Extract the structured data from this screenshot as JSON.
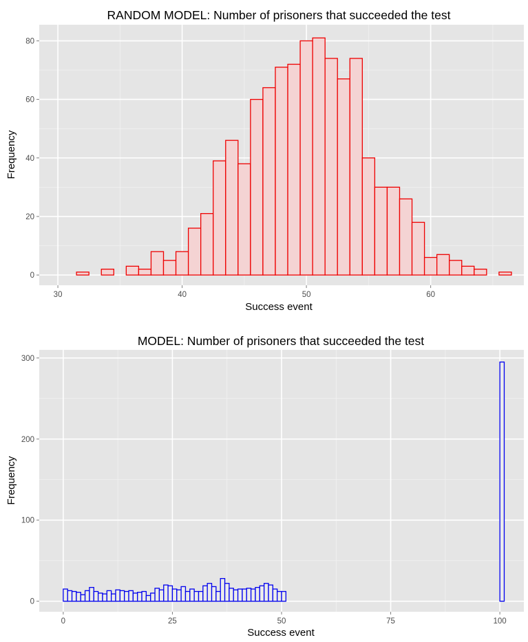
{
  "chart_data": [
    {
      "type": "bar",
      "title": "RANDOM MODEL: Number of prisoners that succeeded the test",
      "xlabel": "Success event",
      "ylabel": "Frequency",
      "xlim": [
        28.5,
        67.5
      ],
      "ylim": [
        -3.5,
        85.5
      ],
      "x_ticks": [
        30,
        40,
        50,
        60
      ],
      "y_ticks": [
        0,
        20,
        40,
        60,
        80
      ],
      "bin_width": 1,
      "grid": true,
      "legend": "none",
      "bar_fill": "#f4d3d3",
      "bar_stroke": "#ee0000",
      "bins": [
        {
          "x": 30,
          "y": 0
        },
        {
          "x": 31,
          "y": 0
        },
        {
          "x": 32,
          "y": 1
        },
        {
          "x": 33,
          "y": 0
        },
        {
          "x": 34,
          "y": 2
        },
        {
          "x": 35,
          "y": 0
        },
        {
          "x": 36,
          "y": 3
        },
        {
          "x": 37,
          "y": 2
        },
        {
          "x": 38,
          "y": 8
        },
        {
          "x": 39,
          "y": 5
        },
        {
          "x": 40,
          "y": 8
        },
        {
          "x": 41,
          "y": 16
        },
        {
          "x": 42,
          "y": 21
        },
        {
          "x": 43,
          "y": 39
        },
        {
          "x": 44,
          "y": 46
        },
        {
          "x": 45,
          "y": 38
        },
        {
          "x": 46,
          "y": 60
        },
        {
          "x": 47,
          "y": 64
        },
        {
          "x": 48,
          "y": 71
        },
        {
          "x": 49,
          "y": 72
        },
        {
          "x": 50,
          "y": 80
        },
        {
          "x": 51,
          "y": 81
        },
        {
          "x": 52,
          "y": 74
        },
        {
          "x": 53,
          "y": 67
        },
        {
          "x": 54,
          "y": 74
        },
        {
          "x": 55,
          "y": 40
        },
        {
          "x": 56,
          "y": 30
        },
        {
          "x": 57,
          "y": 30
        },
        {
          "x": 58,
          "y": 26
        },
        {
          "x": 59,
          "y": 18
        },
        {
          "x": 60,
          "y": 6
        },
        {
          "x": 61,
          "y": 7
        },
        {
          "x": 62,
          "y": 5
        },
        {
          "x": 63,
          "y": 3
        },
        {
          "x": 64,
          "y": 2
        },
        {
          "x": 65,
          "y": 0
        },
        {
          "x": 66,
          "y": 1
        }
      ]
    },
    {
      "type": "bar",
      "title": "MODEL: Number of prisoners that succeeded the test",
      "xlabel": "Success event",
      "ylabel": "Frequency",
      "xlim": [
        -5.5,
        105.5
      ],
      "ylim": [
        -13,
        310
      ],
      "x_ticks": [
        0,
        25,
        50,
        75,
        100
      ],
      "y_ticks": [
        0,
        100,
        200,
        300
      ],
      "bin_width": 1,
      "grid": true,
      "legend": "none",
      "bar_fill": "#ebebeb",
      "bar_stroke": "#0000ee",
      "bins": [
        {
          "x": -0.5,
          "y": 0
        },
        {
          "x": 0.5,
          "y": 15
        },
        {
          "x": 1.5,
          "y": 13
        },
        {
          "x": 2.5,
          "y": 12
        },
        {
          "x": 3.5,
          "y": 11
        },
        {
          "x": 4.5,
          "y": 8
        },
        {
          "x": 5.5,
          "y": 13
        },
        {
          "x": 6.5,
          "y": 17
        },
        {
          "x": 7.5,
          "y": 12
        },
        {
          "x": 8.5,
          "y": 10
        },
        {
          "x": 9.5,
          "y": 9
        },
        {
          "x": 10.5,
          "y": 13
        },
        {
          "x": 11.5,
          "y": 9
        },
        {
          "x": 12.5,
          "y": 14
        },
        {
          "x": 13.5,
          "y": 13
        },
        {
          "x": 14.5,
          "y": 12
        },
        {
          "x": 15.5,
          "y": 13
        },
        {
          "x": 16.5,
          "y": 10
        },
        {
          "x": 17.5,
          "y": 11
        },
        {
          "x": 18.5,
          "y": 12
        },
        {
          "x": 19.5,
          "y": 7
        },
        {
          "x": 20.5,
          "y": 10
        },
        {
          "x": 21.5,
          "y": 16
        },
        {
          "x": 22.5,
          "y": 14
        },
        {
          "x": 23.5,
          "y": 20
        },
        {
          "x": 24.5,
          "y": 19
        },
        {
          "x": 25.5,
          "y": 15
        },
        {
          "x": 26.5,
          "y": 14
        },
        {
          "x": 27.5,
          "y": 18
        },
        {
          "x": 28.5,
          "y": 12
        },
        {
          "x": 29.5,
          "y": 15
        },
        {
          "x": 30.5,
          "y": 12
        },
        {
          "x": 31.5,
          "y": 12
        },
        {
          "x": 32.5,
          "y": 19
        },
        {
          "x": 33.5,
          "y": 22
        },
        {
          "x": 34.5,
          "y": 18
        },
        {
          "x": 35.5,
          "y": 12
        },
        {
          "x": 36.5,
          "y": 28
        },
        {
          "x": 37.5,
          "y": 22
        },
        {
          "x": 38.5,
          "y": 16
        },
        {
          "x": 39.5,
          "y": 14
        },
        {
          "x": 40.5,
          "y": 15
        },
        {
          "x": 41.5,
          "y": 15
        },
        {
          "x": 42.5,
          "y": 16
        },
        {
          "x": 43.5,
          "y": 15
        },
        {
          "x": 44.5,
          "y": 17
        },
        {
          "x": 45.5,
          "y": 19
        },
        {
          "x": 46.5,
          "y": 22
        },
        {
          "x": 47.5,
          "y": 20
        },
        {
          "x": 48.5,
          "y": 15
        },
        {
          "x": 49.5,
          "y": 12
        },
        {
          "x": 50.5,
          "y": 12
        },
        {
          "x": 51.5,
          "y": 0
        },
        {
          "x": 52.5,
          "y": 0
        },
        {
          "x": 53.5,
          "y": 0
        },
        {
          "x": 54.5,
          "y": 0
        },
        {
          "x": 55.5,
          "y": 0
        },
        {
          "x": 56.5,
          "y": 0
        },
        {
          "x": 57.5,
          "y": 0
        },
        {
          "x": 58.5,
          "y": 0
        },
        {
          "x": 59.5,
          "y": 0
        },
        {
          "x": 60.5,
          "y": 0
        },
        {
          "x": 61.5,
          "y": 0
        },
        {
          "x": 62.5,
          "y": 0
        },
        {
          "x": 63.5,
          "y": 0
        },
        {
          "x": 64.5,
          "y": 0
        },
        {
          "x": 65.5,
          "y": 0
        },
        {
          "x": 66.5,
          "y": 0
        },
        {
          "x": 67.5,
          "y": 0
        },
        {
          "x": 68.5,
          "y": 0
        },
        {
          "x": 69.5,
          "y": 0
        },
        {
          "x": 70.5,
          "y": 0
        },
        {
          "x": 71.5,
          "y": 0
        },
        {
          "x": 72.5,
          "y": 0
        },
        {
          "x": 73.5,
          "y": 0
        },
        {
          "x": 74.5,
          "y": 0
        },
        {
          "x": 75.5,
          "y": 0
        },
        {
          "x": 76.5,
          "y": 0
        },
        {
          "x": 77.5,
          "y": 0
        },
        {
          "x": 78.5,
          "y": 0
        },
        {
          "x": 79.5,
          "y": 0
        },
        {
          "x": 80.5,
          "y": 0
        },
        {
          "x": 81.5,
          "y": 0
        },
        {
          "x": 82.5,
          "y": 0
        },
        {
          "x": 83.5,
          "y": 0
        },
        {
          "x": 84.5,
          "y": 0
        },
        {
          "x": 85.5,
          "y": 0
        },
        {
          "x": 86.5,
          "y": 0
        },
        {
          "x": 87.5,
          "y": 0
        },
        {
          "x": 88.5,
          "y": 0
        },
        {
          "x": 89.5,
          "y": 0
        },
        {
          "x": 90.5,
          "y": 0
        },
        {
          "x": 91.5,
          "y": 0
        },
        {
          "x": 92.5,
          "y": 0
        },
        {
          "x": 93.5,
          "y": 0
        },
        {
          "x": 94.5,
          "y": 0
        },
        {
          "x": 95.5,
          "y": 0
        },
        {
          "x": 96.5,
          "y": 0
        },
        {
          "x": 97.5,
          "y": 0
        },
        {
          "x": 98.5,
          "y": 0
        },
        {
          "x": 99.5,
          "y": 0
        },
        {
          "x": 100.5,
          "y": 295
        }
      ]
    }
  ]
}
